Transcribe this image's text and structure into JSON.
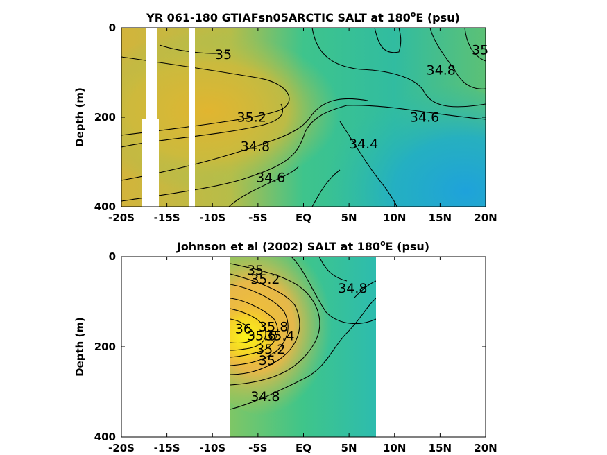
{
  "chart_data": [
    {
      "type": "heatmap",
      "subtype": "filled-contour",
      "title_main": "YR 061-180 GTIAFsn05ARCTIC SALT at 180",
      "title_sup": "o",
      "title_end": "E (psu)",
      "ylabel": "Depth (m)",
      "xlim": [
        -20,
        20
      ],
      "ylim": [
        400,
        0
      ],
      "xticks": [
        -20,
        -15,
        -10,
        -5,
        0,
        5,
        10,
        15,
        20
      ],
      "xtick_labels": [
        "-20S",
        "-15S",
        "-10S",
        "-5S",
        "EQ",
        "5N",
        "10N",
        "15N",
        "20N"
      ],
      "yticks": [
        0,
        200,
        400
      ],
      "ytick_labels": [
        "0",
        "200",
        "400"
      ],
      "contour_labels": [
        {
          "text": "35",
          "x": -8.8,
          "y": 70
        },
        {
          "text": "35.2",
          "x": -5.7,
          "y": 210
        },
        {
          "text": "34.8",
          "x": -5.3,
          "y": 275
        },
        {
          "text": "34.6",
          "x": -3.6,
          "y": 345
        },
        {
          "text": "34.4",
          "x": 6.6,
          "y": 270
        },
        {
          "text": "34.6",
          "x": 13.3,
          "y": 210
        },
        {
          "text": "34.8",
          "x": 15.1,
          "y": 105
        },
        {
          "text": "35",
          "x": 19.4,
          "y": 60
        }
      ],
      "gaps_no_data": [
        {
          "x": [
            -18.3,
            -16.9
          ],
          "y": [
            200,
            400
          ]
        },
        {
          "x": [
            -17.4,
            -16.9
          ],
          "y": [
            0,
            200
          ]
        },
        {
          "x": [
            -12.7,
            -12.0
          ],
          "y": [
            0,
            400
          ]
        }
      ]
    },
    {
      "type": "heatmap",
      "subtype": "filled-contour",
      "title_main": "Johnson et al (2002) SALT at 180",
      "title_sup": "o",
      "title_end": "E (psu)",
      "ylabel": "Depth (m)",
      "xlim": [
        -20,
        20
      ],
      "ylim": [
        400,
        0
      ],
      "data_extent_x": [
        -8,
        8
      ],
      "xticks": [
        -20,
        -15,
        -10,
        -5,
        0,
        5,
        10,
        15,
        20
      ],
      "xtick_labels": [
        "-20S",
        "-15S",
        "-10S",
        "-5S",
        "EQ",
        "5N",
        "10N",
        "15N",
        "20N"
      ],
      "yticks": [
        0,
        200,
        400
      ],
      "ytick_labels": [
        "0",
        "200",
        "400"
      ],
      "contour_labels": [
        {
          "text": "35",
          "x": -5.3,
          "y": 40
        },
        {
          "text": "35.2",
          "x": -4.2,
          "y": 60
        },
        {
          "text": "36",
          "x": -6.6,
          "y": 170
        },
        {
          "text": "35.8",
          "x": -3.3,
          "y": 165
        },
        {
          "text": "35.6",
          "x": -4.6,
          "y": 185
        },
        {
          "text": "35.4",
          "x": -2.6,
          "y": 185
        },
        {
          "text": "35.2",
          "x": -3.6,
          "y": 215
        },
        {
          "text": "35",
          "x": -4.0,
          "y": 240
        },
        {
          "text": "34.8",
          "x": -4.2,
          "y": 320
        },
        {
          "text": "34.8",
          "x": 5.4,
          "y": 80
        }
      ]
    }
  ]
}
